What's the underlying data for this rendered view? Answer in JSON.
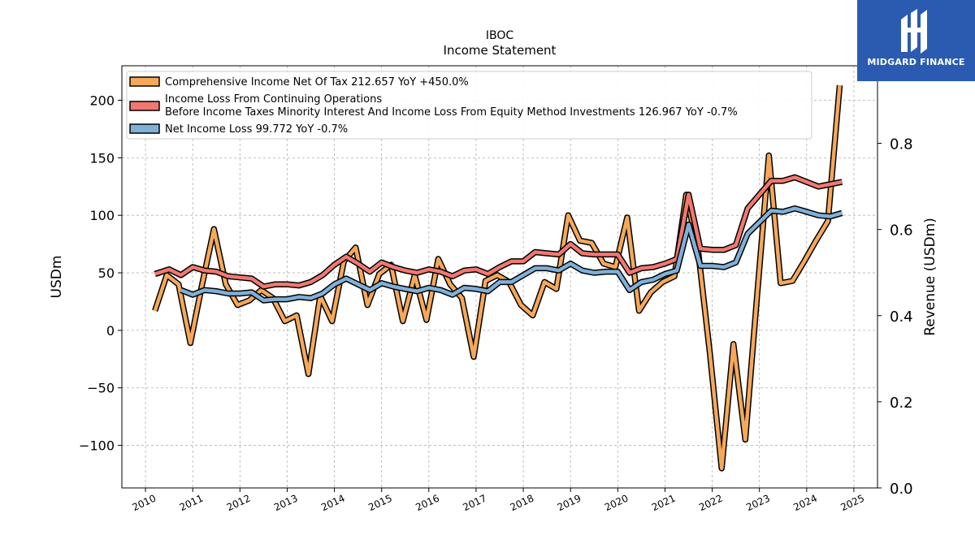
{
  "brand": {
    "name": "MIDGARD FINANCE",
    "bg_color": "#2a5bb0"
  },
  "chart_data": {
    "type": "line",
    "title": "IBOC",
    "subtitle": "Income Statement",
    "ylabel": "USDm",
    "y2label": "Revenue (USDm)",
    "ylim": [
      -137,
      230
    ],
    "y2lim": [
      0.0,
      0.98
    ],
    "yticks": [
      -100,
      -50,
      0,
      50,
      100,
      150,
      200
    ],
    "y2ticks": [
      0.0,
      0.2,
      0.4,
      0.6,
      0.8
    ],
    "y2ticklabels": [
      "0.0",
      "0.2",
      "0.4",
      "0.6",
      "0.8"
    ],
    "yticklabels": [
      "−100",
      "−50",
      "0",
      "50",
      "100",
      "150",
      "200"
    ],
    "xlim": [
      2009.5,
      2025.5
    ],
    "xticks": [
      2010,
      2011,
      2012,
      2013,
      2014,
      2015,
      2016,
      2017,
      2018,
      2019,
      2020,
      2021,
      2022,
      2023,
      2024,
      2025
    ],
    "grid": true,
    "legend_position": "top-left",
    "series": [
      {
        "name": "Comprehensive Income Net Of Tax",
        "legend_label": "Comprehensive Income Net Of Tax  212.657 YoY +450.0%",
        "color": "#f5a85a",
        "x": [
          2010.2,
          2010.45,
          2010.7,
          2010.95,
          2011.2,
          2011.45,
          2011.7,
          2011.95,
          2012.2,
          2012.45,
          2012.7,
          2012.95,
          2013.2,
          2013.45,
          2013.7,
          2013.95,
          2014.2,
          2014.45,
          2014.7,
          2014.95,
          2015.2,
          2015.45,
          2015.7,
          2015.95,
          2016.2,
          2016.45,
          2016.7,
          2016.95,
          2017.2,
          2017.45,
          2017.7,
          2017.95,
          2018.2,
          2018.45,
          2018.7,
          2018.95,
          2019.2,
          2019.45,
          2019.7,
          2019.95,
          2020.2,
          2020.45,
          2020.7,
          2020.95,
          2021.2,
          2021.45,
          2021.7,
          2021.95,
          2022.2,
          2022.45,
          2022.7,
          2022.95,
          2023.2,
          2023.45,
          2023.7,
          2023.95,
          2024.2,
          2024.45,
          2024.7,
          2024.95
        ],
        "values": [
          17,
          48,
          40,
          -11,
          40,
          88,
          40,
          22,
          26,
          35,
          28,
          8,
          13,
          -38,
          30,
          8,
          60,
          72,
          22,
          49,
          57,
          8,
          48,
          9,
          62,
          40,
          28,
          -23,
          43,
          48,
          42,
          22,
          13,
          42,
          36,
          100,
          78,
          76,
          58,
          55,
          98,
          17,
          33,
          42,
          47,
          118,
          70,
          -20,
          -120,
          -12,
          -95,
          30,
          152,
          41,
          43,
          60,
          78,
          95,
          213,
          null
        ]
      },
      {
        "name": "Income Loss From Continuing Operations Before Income Taxes Minority Interest And Income Loss From Equity Method Investments",
        "legend_label_line1": "Income Loss From Continuing Operations",
        "legend_label_line2": "Before Income Taxes Minority Interest And Income Loss From Equity Method Investments  126.967 YoY -0.7%",
        "color": "#f07870",
        "x": [
          2010.2,
          2010.5,
          2010.75,
          2011.0,
          2011.25,
          2011.5,
          2011.75,
          2012.0,
          2012.25,
          2012.5,
          2012.75,
          2013.0,
          2013.25,
          2013.5,
          2013.75,
          2014.0,
          2014.25,
          2014.5,
          2014.75,
          2015.0,
          2015.25,
          2015.5,
          2015.75,
          2016.0,
          2016.25,
          2016.5,
          2016.75,
          2017.0,
          2017.25,
          2017.5,
          2017.75,
          2018.0,
          2018.25,
          2018.5,
          2018.75,
          2019.0,
          2019.25,
          2019.5,
          2019.75,
          2020.0,
          2020.25,
          2020.5,
          2020.75,
          2021.0,
          2021.25,
          2021.5,
          2021.75,
          2022.0,
          2022.25,
          2022.5,
          2022.75,
          2023.0,
          2023.25,
          2023.5,
          2023.75,
          2024.0,
          2024.25,
          2024.5,
          2024.75
        ],
        "values": [
          49,
          53,
          48,
          55,
          52,
          51,
          47,
          46,
          45,
          38,
          40,
          40,
          39,
          42,
          48,
          57,
          64,
          58,
          51,
          59,
          55,
          52,
          50,
          53,
          51,
          47,
          52,
          53,
          49,
          55,
          60,
          60,
          68,
          67,
          66,
          75,
          67,
          66,
          66,
          66,
          50,
          54,
          55,
          58,
          62,
          118,
          71,
          70,
          70,
          74,
          106,
          118,
          130,
          130,
          133,
          129,
          125,
          127,
          129
        ]
      },
      {
        "name": "Net Income Loss",
        "legend_label": "Net Income Loss  99.772 YoY -0.7%",
        "color": "#7fb0d8",
        "x": [
          2010.75,
          2011.0,
          2011.25,
          2011.5,
          2011.75,
          2012.0,
          2012.25,
          2012.5,
          2012.75,
          2013.0,
          2013.25,
          2013.5,
          2013.75,
          2014.0,
          2014.25,
          2014.5,
          2014.75,
          2015.0,
          2015.25,
          2015.5,
          2015.75,
          2016.0,
          2016.25,
          2016.5,
          2016.75,
          2017.0,
          2017.25,
          2017.5,
          2017.75,
          2018.0,
          2018.25,
          2018.5,
          2018.75,
          2019.0,
          2019.25,
          2019.5,
          2019.75,
          2020.0,
          2020.25,
          2020.5,
          2020.75,
          2021.0,
          2021.25,
          2021.5,
          2021.75,
          2022.0,
          2022.25,
          2022.5,
          2022.75,
          2023.0,
          2023.25,
          2023.5,
          2023.75,
          2024.0,
          2024.25,
          2024.5,
          2024.75
        ],
        "values": [
          35,
          31,
          35,
          34,
          32,
          32,
          33,
          26,
          27,
          27,
          29,
          28,
          32,
          40,
          45,
          40,
          35,
          41,
          38,
          36,
          34,
          37,
          35,
          31,
          37,
          36,
          34,
          42,
          42,
          48,
          54,
          54,
          52,
          58,
          52,
          50,
          51,
          51,
          35,
          42,
          44,
          49,
          52,
          92,
          56,
          56,
          55,
          59,
          84,
          94,
          104,
          103,
          106,
          103,
          100,
          99,
          102
        ]
      }
    ]
  }
}
